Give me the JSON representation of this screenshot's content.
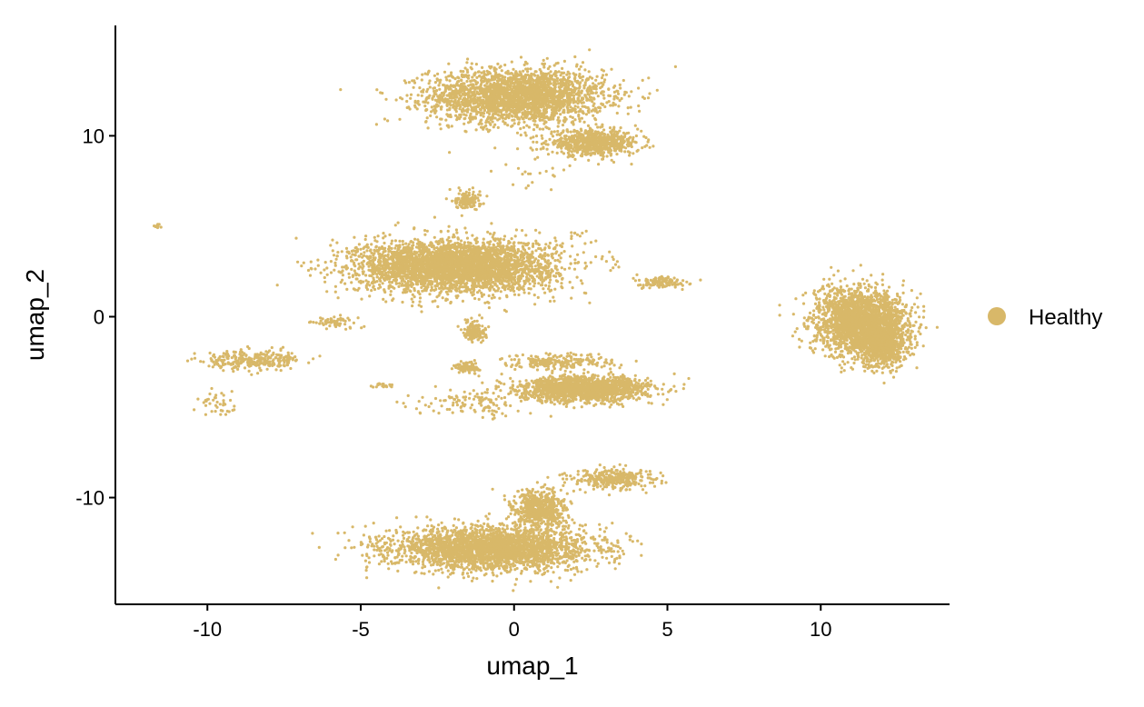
{
  "chart_data": {
    "type": "scatter",
    "xlabel": "umap_1",
    "ylabel": "umap_2",
    "xlim": [
      -13,
      14.2
    ],
    "ylim": [
      -15.9,
      16.1
    ],
    "x_ticks": [
      -10,
      -5,
      0,
      5,
      10
    ],
    "y_ticks": [
      -10,
      0,
      10
    ],
    "x_tick_labels": [
      "-10",
      "-5",
      "0",
      "5",
      "10"
    ],
    "y_tick_labels": [
      "-10",
      "0",
      "10"
    ],
    "grid": false,
    "legend_position": "right",
    "series": [
      {
        "name": "Healthy",
        "color": "#D8B869",
        "clusters": [
          {
            "cx": 0.1,
            "cy": 12.2,
            "sx": 2.3,
            "sy": 1.2,
            "n": 2600
          },
          {
            "cx": 2.6,
            "cy": 9.6,
            "sx": 1.2,
            "sy": 0.55,
            "n": 700
          },
          {
            "cx": -1.9,
            "cy": 2.8,
            "sx": 2.6,
            "sy": 1.15,
            "n": 3600
          },
          {
            "cx": -1.5,
            "cy": 6.5,
            "sx": 0.35,
            "sy": 0.45,
            "n": 120
          },
          {
            "cx": -1.3,
            "cy": -0.8,
            "sx": 0.3,
            "sy": 0.45,
            "n": 140
          },
          {
            "cx": -1.5,
            "cy": -2.8,
            "sx": 0.3,
            "sy": 0.25,
            "n": 90
          },
          {
            "cx": 2.3,
            "cy": -4.0,
            "sx": 1.7,
            "sy": 0.55,
            "n": 1600
          },
          {
            "cx": 1.5,
            "cy": -2.5,
            "sx": 1.4,
            "sy": 0.35,
            "n": 220
          },
          {
            "cx": -0.7,
            "cy": -12.8,
            "sx": 2.6,
            "sy": 0.95,
            "n": 2800
          },
          {
            "cx": 0.8,
            "cy": -10.7,
            "sx": 0.7,
            "sy": 0.9,
            "n": 600
          },
          {
            "cx": 3.3,
            "cy": -9.0,
            "sx": 1.1,
            "sy": 0.45,
            "n": 320
          },
          {
            "cx": 11.3,
            "cy": -0.3,
            "sx": 1.2,
            "sy": 1.5,
            "n": 2200
          },
          {
            "cx": 12.1,
            "cy": -1.5,
            "sx": 0.6,
            "sy": 1.0,
            "n": 700
          },
          {
            "cx": 4.8,
            "cy": 1.9,
            "sx": 0.6,
            "sy": 0.25,
            "n": 120
          },
          {
            "cx": -8.6,
            "cy": -2.4,
            "sx": 1.3,
            "sy": 0.45,
            "n": 300
          },
          {
            "cx": -5.8,
            "cy": -0.3,
            "sx": 0.7,
            "sy": 0.25,
            "n": 60
          },
          {
            "cx": -9.6,
            "cy": -4.7,
            "sx": 0.5,
            "sy": 0.6,
            "n": 40
          },
          {
            "cx": -11.6,
            "cy": 5.0,
            "sx": 0.08,
            "sy": 0.08,
            "n": 12
          },
          {
            "cx": -4.3,
            "cy": -3.8,
            "sx": 0.3,
            "sy": 0.1,
            "n": 20
          },
          {
            "cx": -1.5,
            "cy": -4.8,
            "sx": 1.5,
            "sy": 0.6,
            "n": 120
          },
          {
            "cx": 2.0,
            "cy": 4.6,
            "sx": 0.3,
            "sy": 0.2,
            "n": 8
          },
          {
            "cx": 0.6,
            "cy": 7.8,
            "sx": 1.2,
            "sy": 0.7,
            "n": 20
          }
        ]
      }
    ]
  }
}
